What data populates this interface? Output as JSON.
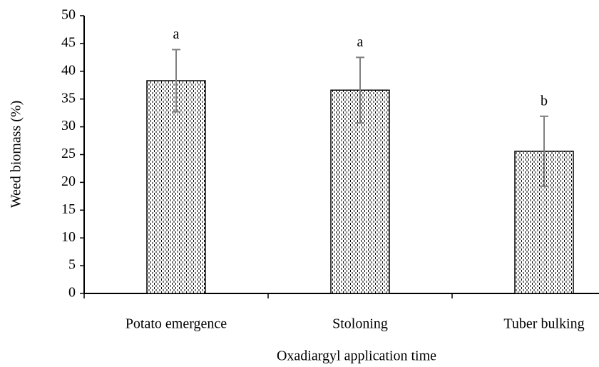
{
  "chart_data": {
    "type": "bar",
    "x_label": "Oxadiargyl application time",
    "y_label": "Weed biomass (%)",
    "categories": [
      "Potato emergence",
      "Stoloning",
      "Tuber bulking"
    ],
    "values": [
      38.3,
      36.6,
      25.6
    ],
    "errors": [
      5.6,
      5.9,
      6.3
    ],
    "annotations": [
      "a",
      "a",
      "b"
    ],
    "color": "#000000",
    "ylim": [
      0,
      50
    ],
    "yticks": [
      0,
      5,
      10,
      15,
      20,
      25,
      30,
      35,
      40,
      45,
      50
    ],
    "grid": false
  }
}
